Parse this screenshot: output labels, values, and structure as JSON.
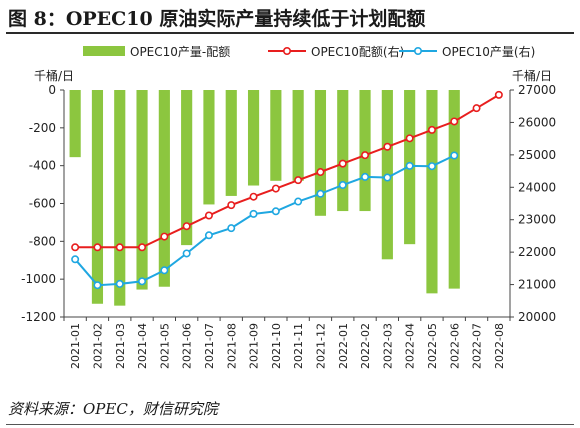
{
  "header": {
    "title": "图 8：OPEC10 原油实际产量持续低于计划配额"
  },
  "footer": {
    "source": "资料来源：OPEC，财信研究院"
  },
  "chart_data": {
    "type": "bar",
    "categories": [
      "2021-01",
      "2021-02",
      "2021-03",
      "2021-04",
      "2021-05",
      "2021-06",
      "2021-07",
      "2021-08",
      "2021-09",
      "2021-10",
      "2021-11",
      "2021-12",
      "2022-01",
      "2022-02",
      "2022-03",
      "2022-04",
      "2022-05",
      "2022-06",
      "2022-07",
      "2022-08"
    ],
    "left_axis": {
      "unit": "千桶/日",
      "min": -1200,
      "max": 0,
      "ticks": [
        0,
        -200,
        -400,
        -600,
        -800,
        -1000,
        -1200
      ]
    },
    "right_axis": {
      "unit": "千桶/日",
      "min": 20000,
      "max": 27000,
      "ticks": [
        27000,
        26000,
        25000,
        24000,
        23000,
        22000,
        21000,
        20000
      ]
    },
    "legend_position": "top",
    "series": [
      {
        "name": "OPEC10产量-配额",
        "type": "bar",
        "axis": "left",
        "color": "#8cc63f",
        "values": [
          -355,
          -1130,
          -1140,
          -1055,
          -1040,
          -820,
          -605,
          -560,
          -505,
          -480,
          -480,
          -665,
          -640,
          -640,
          -895,
          -815,
          -1075,
          -1050,
          null,
          null
        ]
      },
      {
        "name": "OPEC10配额(右)",
        "type": "line",
        "axis": "right",
        "color": "#e81e1e",
        "values": [
          22150,
          22150,
          22150,
          22150,
          22480,
          22800,
          23130,
          23450,
          23710,
          23960,
          24220,
          24470,
          24730,
          24990,
          25250,
          25510,
          25770,
          26030,
          26440,
          26850
        ]
      },
      {
        "name": "OPEC10产量(右)",
        "type": "line",
        "axis": "right",
        "color": "#1fa7e1",
        "values": [
          21780,
          20980,
          21020,
          21100,
          21440,
          21960,
          22520,
          22740,
          23180,
          23260,
          23560,
          23800,
          24070,
          24320,
          24300,
          24660,
          24650,
          24980,
          null,
          null
        ]
      }
    ]
  }
}
